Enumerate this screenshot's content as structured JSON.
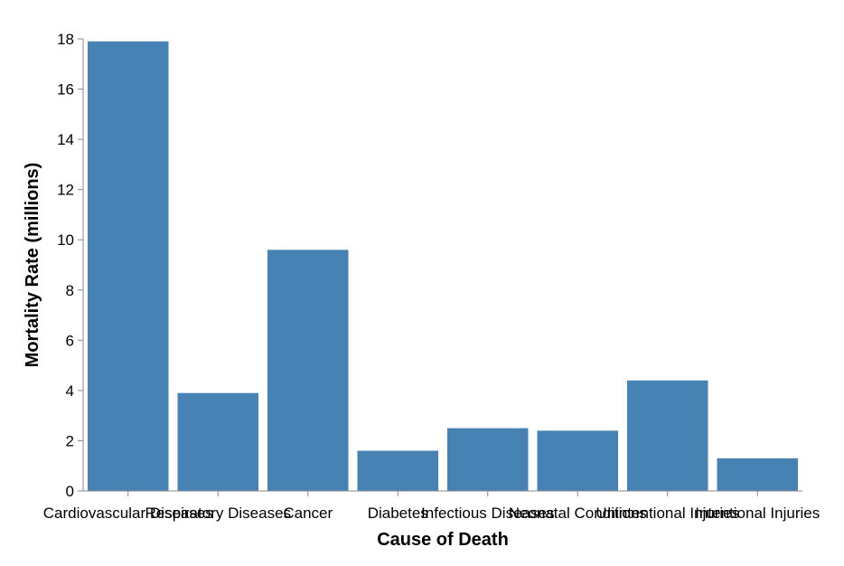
{
  "chart_data": {
    "type": "bar",
    "categories": [
      "Cardiovascular Diseases",
      "Respiratory Diseases",
      "Cancer",
      "Diabetes",
      "Infectious Diseases",
      "Neonatal Conditions",
      "Unintentional Injuries",
      "Intentional Injuries"
    ],
    "values": [
      17.9,
      3.9,
      9.6,
      1.6,
      2.5,
      2.4,
      4.4,
      1.3
    ],
    "xlabel": "Cause of Death",
    "ylabel": "Mortality Rate (millions)",
    "ylim": [
      0,
      18
    ],
    "yticks": [
      0,
      2,
      4,
      6,
      8,
      10,
      12,
      14,
      16,
      18
    ],
    "bar_color": "#4682b4",
    "axis_color": "#888888",
    "grid": false,
    "legend": "none"
  }
}
